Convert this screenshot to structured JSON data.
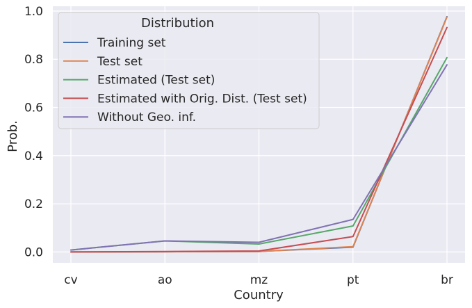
{
  "chart_data": {
    "type": "line",
    "title": "",
    "xlabel": "Country",
    "ylabel": "Prob.",
    "categories": [
      "cv",
      "ao",
      "mz",
      "pt",
      "br"
    ],
    "ylim": [
      -0.045,
      1.02
    ],
    "yticks": [
      0.0,
      0.2,
      0.4,
      0.6,
      0.8,
      1.0
    ],
    "ytick_labels": [
      "0.0",
      "0.2",
      "0.4",
      "0.6",
      "0.8",
      "1.0"
    ],
    "grid": true,
    "legend": {
      "title": "Distribution",
      "placement": "upper-left"
    },
    "series": [
      {
        "name": "Training set",
        "color": "#4c72b0",
        "values": [
          0.0,
          0.001,
          0.002,
          0.02,
          0.977
        ]
      },
      {
        "name": "Test set",
        "color": "#dd8452",
        "values": [
          0.0,
          0.001,
          0.002,
          0.022,
          0.975
        ]
      },
      {
        "name": "Estimated (Test set)",
        "color": "#55a868",
        "values": [
          0.008,
          0.046,
          0.033,
          0.108,
          0.807
        ]
      },
      {
        "name": "Estimated with Orig. Dist. (Test set)",
        "color": "#c44e52",
        "values": [
          0.0,
          0.002,
          0.004,
          0.064,
          0.932
        ]
      },
      {
        "name": "Without Geo. inf.",
        "color": "#8172b3",
        "values": [
          0.008,
          0.046,
          0.04,
          0.135,
          0.777
        ]
      }
    ]
  }
}
